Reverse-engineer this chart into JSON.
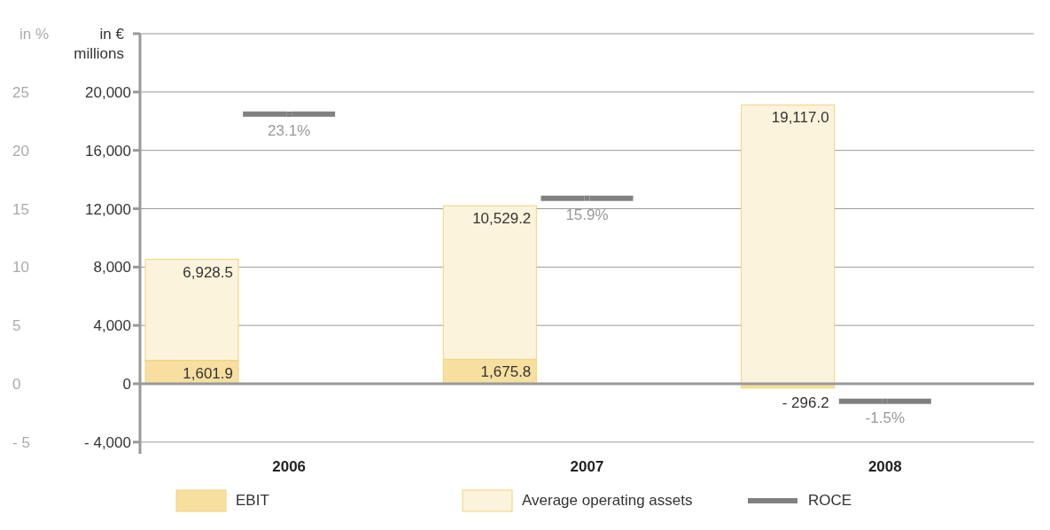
{
  "chart_data": {
    "type": "bar",
    "ylabel": "in € millions",
    "y2label": "in %",
    "categories": [
      "2006",
      "2007",
      "2008"
    ],
    "stacked": true,
    "series": [
      {
        "name": "EBIT",
        "color": "#f7dfa0",
        "values": [
          1601.9,
          1675.8,
          -296.2
        ],
        "value_labels": [
          "1,601.9",
          "1,675.8",
          "- 296.2"
        ]
      },
      {
        "name": "Average operating assets",
        "color": "#fcf3dc",
        "values": [
          6928.5,
          10529.2,
          19117.0
        ],
        "value_labels": [
          "6,928.5",
          "10,529.2",
          "19,117.0"
        ]
      },
      {
        "name": "ROCE",
        "type": "scatter",
        "axis": "y2",
        "color": "#808080",
        "values": [
          23.1,
          15.9,
          -1.5
        ],
        "value_labels": [
          "23.1%",
          "15.9%",
          "-1.5%"
        ]
      }
    ],
    "ylim": [
      -4800,
      24000
    ],
    "yticks": [
      {
        "value": -4000,
        "label": "- 4,000"
      },
      0,
      {
        "value": 4000,
        "label": "4,000"
      },
      {
        "value": 8000,
        "label": "8,000"
      },
      {
        "value": 12000,
        "label": "12,000"
      },
      {
        "value": 16000,
        "label": "16,000"
      },
      {
        "value": 20000,
        "label": "20,000"
      },
      {
        "value": 24000,
        "label": null
      }
    ],
    "y2lim": [
      -6,
      30
    ],
    "y2ticks": [
      {
        "value": -5,
        "label": "- 5"
      },
      0,
      5,
      10,
      15,
      20,
      25,
      {
        "value": 30,
        "label": null
      }
    ],
    "grid": "y",
    "legend": "bottom",
    "marker": "square"
  }
}
